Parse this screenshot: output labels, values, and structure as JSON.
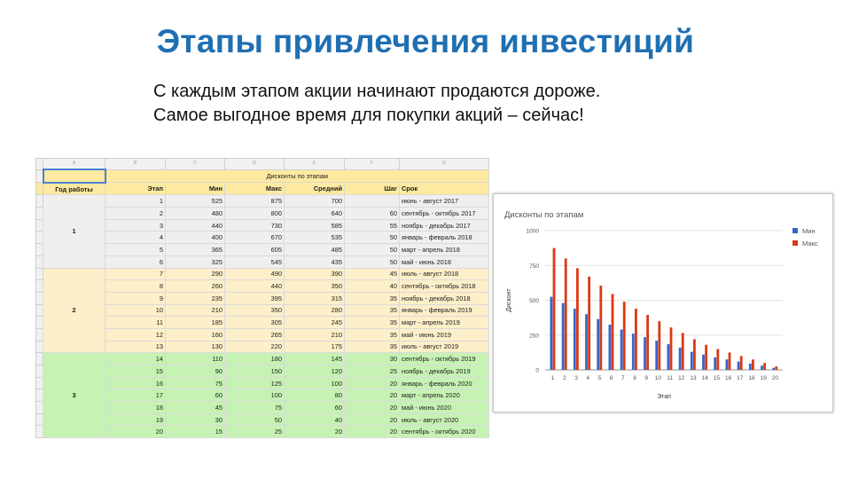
{
  "slide": {
    "title": "Этапы привлечения инвестиций",
    "subtitle_line1": "С каждым этапом акции начинают продаются дороже.",
    "subtitle_line2": "Самое выгодное время для покупки акций – сейчас!"
  },
  "sheet": {
    "col_letters": [
      "A",
      "B",
      "C",
      "D",
      "E",
      "F",
      "G"
    ],
    "banner": "Дисконты по этапам",
    "headers": [
      "Год работы",
      "Этап",
      "Мин",
      "Макс",
      "Средний",
      "Шаг",
      "Срок"
    ],
    "year_groups": [
      {
        "year": "1",
        "rows": 6
      },
      {
        "year": "2",
        "rows": 7
      },
      {
        "year": "3",
        "rows": 7
      }
    ],
    "rows": [
      {
        "stage": "1",
        "min": "525",
        "max": "875",
        "avg": "700",
        "step": "",
        "term": "июнь - август 2017"
      },
      {
        "stage": "2",
        "min": "480",
        "max": "800",
        "avg": "640",
        "step": "60",
        "term": "сентябрь - октябрь 2017"
      },
      {
        "stage": "3",
        "min": "440",
        "max": "730",
        "avg": "585",
        "step": "55",
        "term": "ноябрь - декабрь 2017"
      },
      {
        "stage": "4",
        "min": "400",
        "max": "670",
        "avg": "535",
        "step": "50",
        "term": "январь - февраль 2018"
      },
      {
        "stage": "5",
        "min": "365",
        "max": "605",
        "avg": "485",
        "step": "50",
        "term": "март - апрель 2018"
      },
      {
        "stage": "6",
        "min": "325",
        "max": "545",
        "avg": "435",
        "step": "50",
        "term": "май - июнь 2018"
      },
      {
        "stage": "7",
        "min": "290",
        "max": "490",
        "avg": "390",
        "step": "45",
        "term": "июль - август 2018"
      },
      {
        "stage": "8",
        "min": "260",
        "max": "440",
        "avg": "350",
        "step": "40",
        "term": "сентябрь - октябрь 2018"
      },
      {
        "stage": "9",
        "min": "235",
        "max": "395",
        "avg": "315",
        "step": "35",
        "term": "ноябрь - декабрь 2018"
      },
      {
        "stage": "10",
        "min": "210",
        "max": "350",
        "avg": "280",
        "step": "35",
        "term": "январь - февраль 2019"
      },
      {
        "stage": "11",
        "min": "185",
        "max": "305",
        "avg": "245",
        "step": "35",
        "term": "март - апрель 2019"
      },
      {
        "stage": "12",
        "min": "160",
        "max": "265",
        "avg": "210",
        "step": "35",
        "term": "май - июнь 2019"
      },
      {
        "stage": "13",
        "min": "130",
        "max": "220",
        "avg": "175",
        "step": "35",
        "term": "июль - август 2019"
      },
      {
        "stage": "14",
        "min": "110",
        "max": "180",
        "avg": "145",
        "step": "30",
        "term": "сентябрь - октябрь 2019"
      },
      {
        "stage": "15",
        "min": "90",
        "max": "150",
        "avg": "120",
        "step": "25",
        "term": "ноябрь - декабрь 2019"
      },
      {
        "stage": "16",
        "min": "75",
        "max": "125",
        "avg": "100",
        "step": "20",
        "term": "январь - февраль 2020"
      },
      {
        "stage": "17",
        "min": "60",
        "max": "100",
        "avg": "80",
        "step": "20",
        "term": "март - апрель 2020"
      },
      {
        "stage": "18",
        "min": "45",
        "max": "75",
        "avg": "60",
        "step": "20",
        "term": "май - июнь 2020"
      },
      {
        "stage": "19",
        "min": "30",
        "max": "50",
        "avg": "40",
        "step": "20",
        "term": "июль - август 2020"
      },
      {
        "stage": "20",
        "min": "15",
        "max": "25",
        "avg": "20",
        "step": "20",
        "term": "сентябрь - октябрь 2020"
      }
    ]
  },
  "chart_data": {
    "type": "bar",
    "title": "Дисконты по этапам",
    "xlabel": "Этап",
    "ylabel": "Дисконт",
    "categories": [
      "1",
      "2",
      "3",
      "4",
      "5",
      "6",
      "7",
      "8",
      "9",
      "10",
      "11",
      "12",
      "13",
      "14",
      "15",
      "16",
      "17",
      "18",
      "19",
      "20"
    ],
    "series": [
      {
        "name": "Мин",
        "color": "#3366cc",
        "values": [
          525,
          480,
          440,
          400,
          365,
          325,
          290,
          260,
          235,
          210,
          185,
          160,
          130,
          110,
          90,
          75,
          60,
          45,
          30,
          15
        ]
      },
      {
        "name": "Макс",
        "color": "#dc3912",
        "values": [
          875,
          800,
          730,
          670,
          605,
          545,
          490,
          440,
          395,
          350,
          305,
          265,
          220,
          180,
          150,
          125,
          100,
          75,
          50,
          25
        ]
      }
    ],
    "ylim": [
      0,
      1000
    ],
    "yticks": [
      0,
      250,
      500,
      750,
      1000
    ],
    "grid": true,
    "legend_position": "right"
  }
}
